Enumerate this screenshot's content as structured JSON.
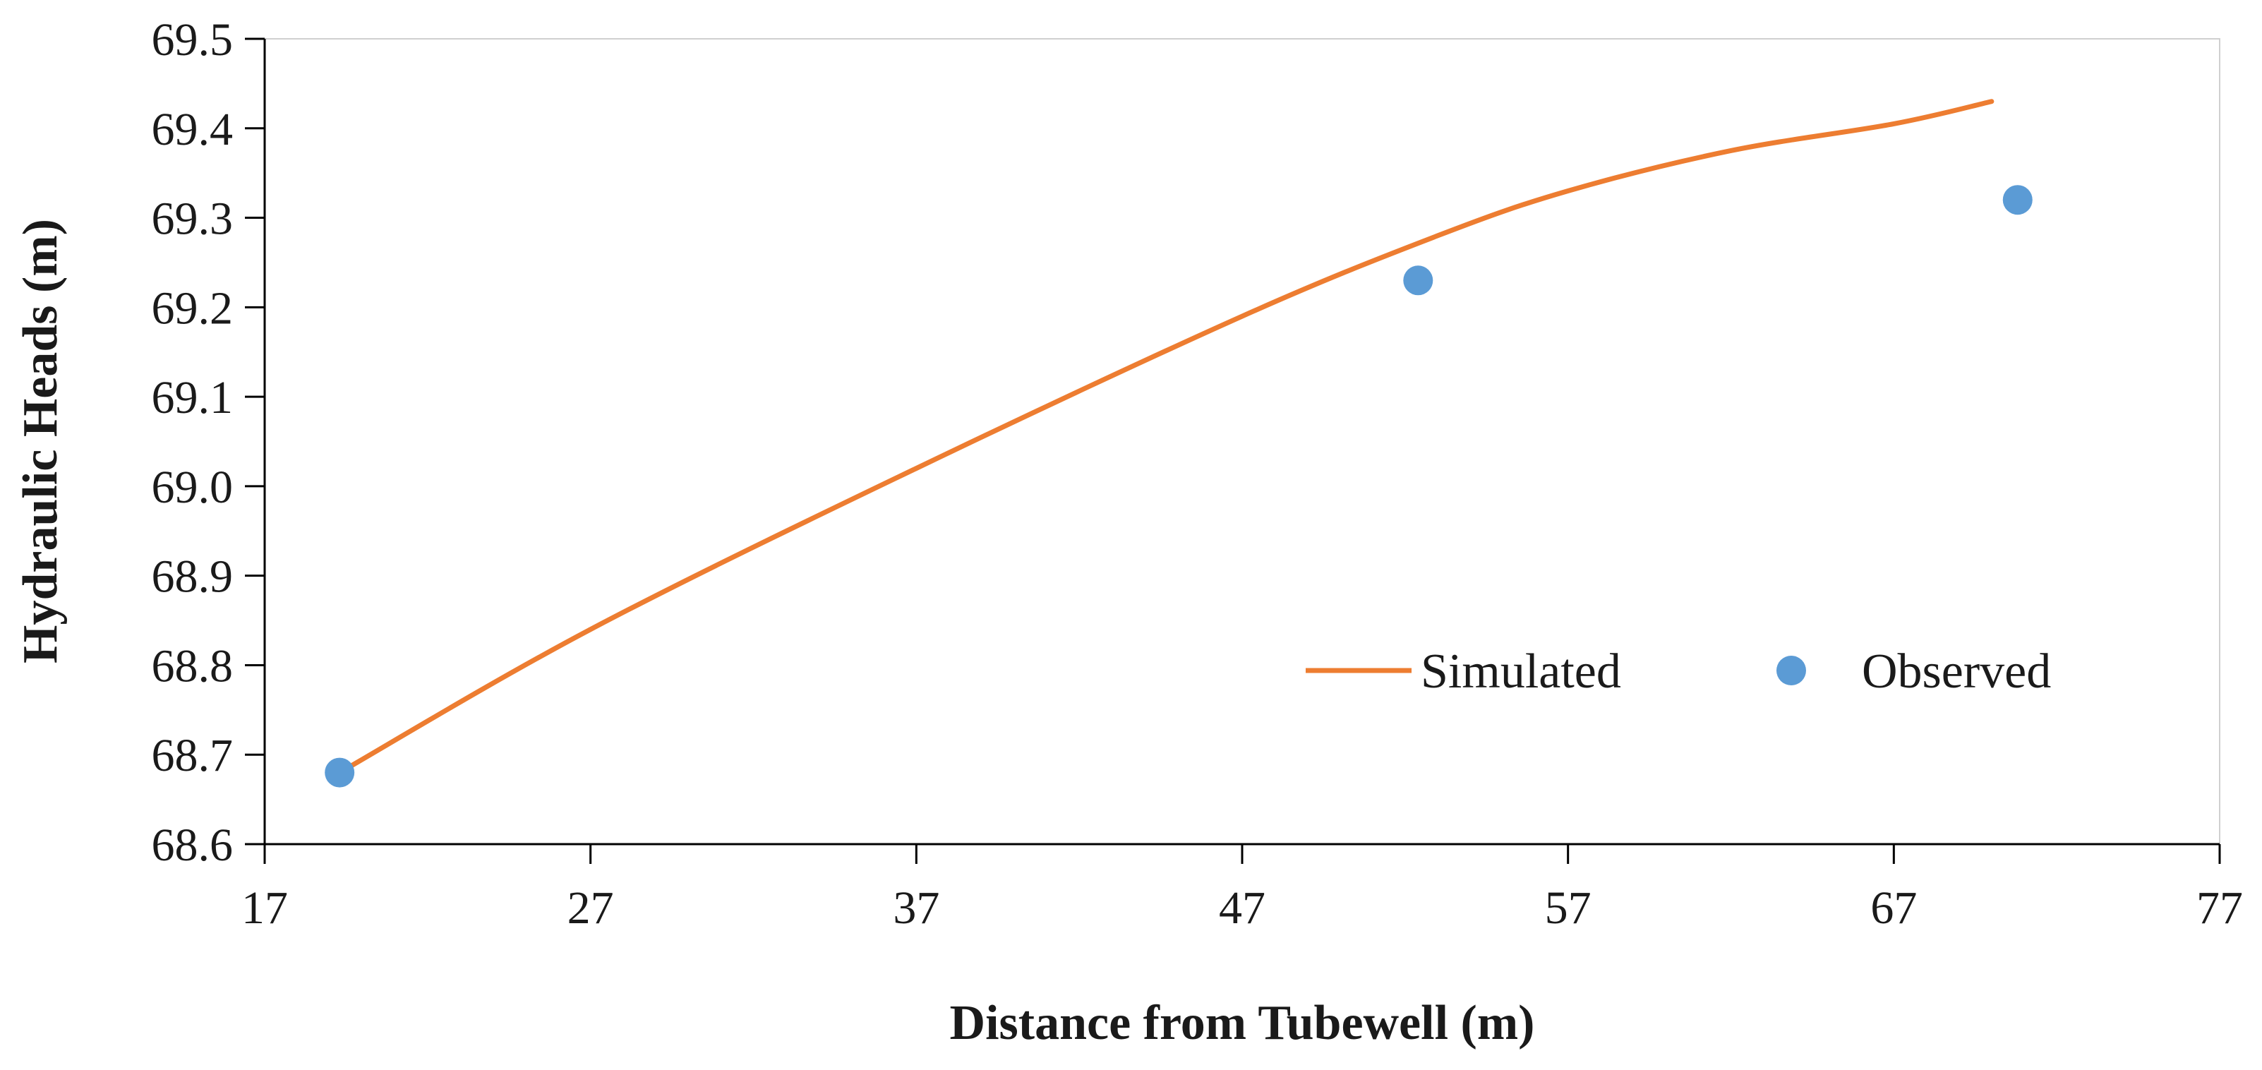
{
  "chart_data": {
    "type": "scatter",
    "title": "",
    "xlabel": "Distance from Tubewell (m)",
    "ylabel": "Hydraulic  Heads (m)",
    "xlim": [
      17,
      77
    ],
    "ylim": [
      68.6,
      69.5
    ],
    "x_ticks": [
      17,
      27,
      37,
      47,
      57,
      67,
      77
    ],
    "y_ticks": [
      68.6,
      68.7,
      68.8,
      68.9,
      69.0,
      69.1,
      69.2,
      69.3,
      69.4,
      69.5
    ],
    "x_tick_labels": [
      "17",
      "27",
      "37",
      "47",
      "57",
      "67",
      "77"
    ],
    "y_tick_labels": [
      "68.6",
      "68.7",
      "68.8",
      "68.9",
      "69.0",
      "69.1",
      "69.2",
      "69.3",
      "69.4",
      "69.5"
    ],
    "grid": false,
    "legend_position": "bottom-right",
    "series": [
      {
        "name": "Simulated",
        "type": "line",
        "color": "#ED7D31",
        "x": [
          19.3,
          27,
          37,
          47,
          53,
          57,
          62,
          67,
          70
        ],
        "y": [
          68.68,
          68.84,
          69.02,
          69.19,
          69.28,
          69.33,
          69.375,
          69.405,
          69.43
        ]
      },
      {
        "name": "Observed",
        "type": "scatter",
        "color": "#5B9BD5",
        "x": [
          19.3,
          52.4,
          70.8
        ],
        "y": [
          68.68,
          69.23,
          69.32
        ]
      }
    ]
  }
}
